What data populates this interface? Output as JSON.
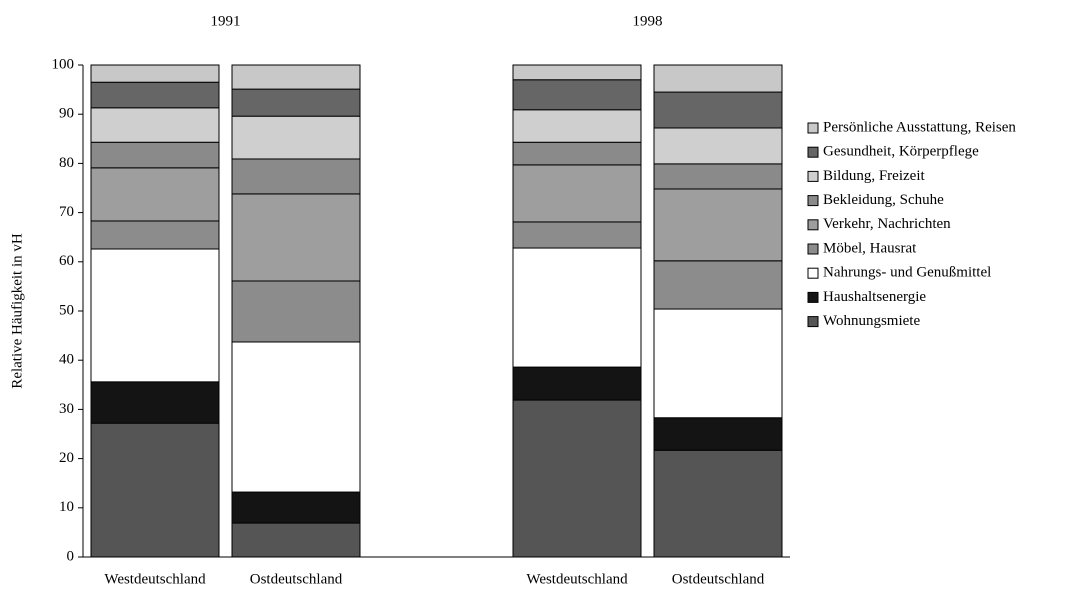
{
  "chart_data": {
    "type": "stacked-bar",
    "y_label": "Relative Häufigkeit in vH",
    "groups": [
      "1991",
      "1998"
    ],
    "categories": [
      "Westdeutschland",
      "Ostdeutschland",
      "Westdeutschland",
      "Ostdeutschland"
    ],
    "ylim": [
      0,
      100
    ],
    "yticks": [
      0,
      10,
      20,
      30,
      40,
      50,
      60,
      70,
      80,
      90,
      100
    ],
    "legend": "right",
    "series": [
      {
        "name": "Wohnungsmiete",
        "color": "#555555",
        "values": [
          27.2,
          6.9,
          31.9,
          21.7
        ]
      },
      {
        "name": "Haushaltsenergie",
        "color": "#141414",
        "values": [
          8.4,
          6.3,
          6.7,
          6.6
        ]
      },
      {
        "name": "Nahrungs- und Genußmittel",
        "color": "#ffffff",
        "values": [
          27.0,
          30.5,
          24.2,
          22.1
        ]
      },
      {
        "name": "Möbel, Hausrat",
        "color": "#8c8c8c",
        "values": [
          5.7,
          12.4,
          5.3,
          9.8
        ]
      },
      {
        "name": "Verkehr, Nachrichten",
        "color": "#9e9e9e",
        "values": [
          10.8,
          17.7,
          11.6,
          14.6
        ]
      },
      {
        "name": "Bekleidung, Schuhe",
        "color": "#8a8a8a",
        "values": [
          5.2,
          7.1,
          4.6,
          5.1
        ]
      },
      {
        "name": "Bildung, Freizeit",
        "color": "#cfcfcf",
        "values": [
          7.0,
          8.7,
          6.6,
          7.3
        ]
      },
      {
        "name": "Gesundheit, Körperpflege",
        "color": "#666666",
        "values": [
          5.2,
          5.5,
          6.1,
          7.3
        ]
      },
      {
        "name": "Persönliche Ausstattung, Reisen",
        "color": "#c8c8c8",
        "values": [
          3.5,
          4.9,
          3.0,
          5.5
        ]
      }
    ]
  }
}
